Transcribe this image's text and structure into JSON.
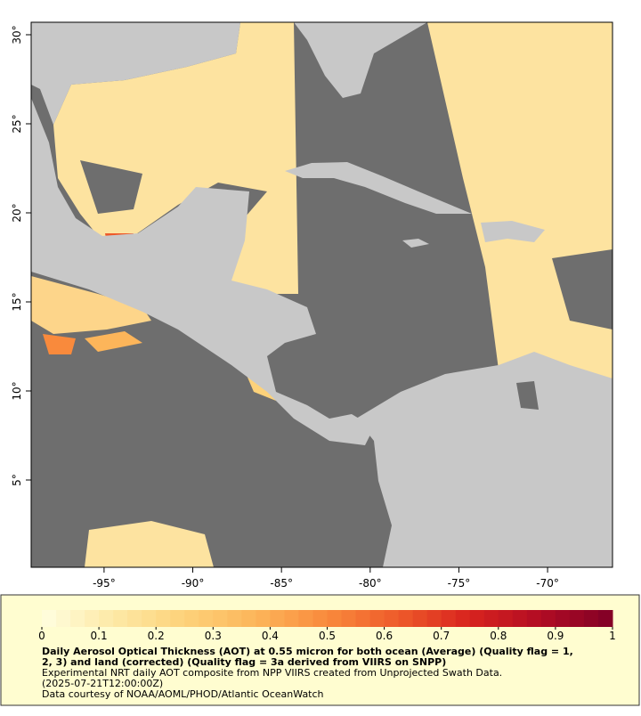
{
  "map": {
    "xlim": [
      -99.11,
      -66.34
    ],
    "ylim": [
      0.1,
      30.7
    ],
    "xticks": [
      {
        "value": -95,
        "label": "-95°"
      },
      {
        "value": -90,
        "label": "-90°"
      },
      {
        "value": -85,
        "label": "-85°"
      },
      {
        "value": -80,
        "label": "-80°"
      },
      {
        "value": -75,
        "label": "-75°"
      },
      {
        "value": -70,
        "label": "-70°"
      }
    ],
    "yticks": [
      {
        "value": 5,
        "label": "5°"
      },
      {
        "value": 10,
        "label": "10°"
      },
      {
        "value": 15,
        "label": "15°"
      },
      {
        "value": 20,
        "label": "20°"
      },
      {
        "value": 25,
        "label": "25°"
      },
      {
        "value": 30,
        "label": "30°"
      }
    ],
    "colorbar": {
      "lim": [
        0,
        1
      ],
      "ticks": [
        0,
        0.1,
        0.2,
        0.3,
        0.4,
        0.5,
        0.6,
        0.7,
        0.8,
        0.9,
        1
      ],
      "colors": [
        "#fffee0",
        "#fde9a6",
        "#fdd27a",
        "#fcb55a",
        "#f98a3c",
        "#ee5a2a",
        "#d8231e",
        "#b10c24",
        "#800026"
      ]
    },
    "caption_title": [
      "Daily Aerosol Optical Thickness (AOT) at 0.55 micron for both ocean (Average) (Quality flag = 1,",
      "2, 3) and land (corrected) (Quality flag = 3a derived from VIIRS on SNPP)"
    ],
    "caption_notes": [
      "Experimental NRT daily AOT composite from NPP VIIRS created from Unprojected Swath Data.",
      "(2025-07-21T12:00:00Z)",
      "Data courtesy of NOAA/AOML/PHOD/Atlantic OceanWatch"
    ]
  }
}
